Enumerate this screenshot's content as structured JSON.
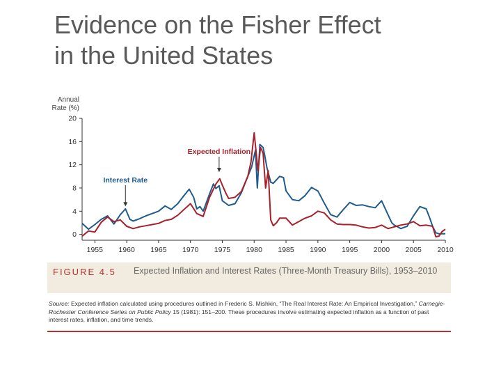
{
  "slide": {
    "title_line1": "Evidence on the Fisher Effect",
    "title_line2": "in the United States"
  },
  "figure": {
    "label": "FIGURE 4.5",
    "caption": "Expected Inflation and Interest Rates (Three-Month Treasury Bills), 1953–2010",
    "source_label": "Source:",
    "source_text_1": "Expected inflation calculated using procedures outlined in Frederic S. Mishkin, “The Real Interest Rate: An Empirical Investigation,”",
    "source_journal": "Carnegie-Rochester Conference Series on Public Policy",
    "source_text_2": "15 (1981): 151–200. These procedures involve estimating expected inflation as a function of past interest rates, inflation, and time trends."
  },
  "colors": {
    "interest_rate": "#1f5c8c",
    "expected_inflation": "#a8202a",
    "accent": "#b5332e"
  },
  "chart_data": {
    "type": "line",
    "ylabel_line1": "Annual",
    "ylabel_line2": "Rate (%)",
    "xlim": [
      1953,
      2010
    ],
    "ylim": [
      -1,
      20
    ],
    "yticks": [
      0,
      4,
      8,
      12,
      16,
      20
    ],
    "xticks": [
      1955,
      1960,
      1965,
      1970,
      1975,
      1980,
      1985,
      1990,
      1995,
      2000,
      2005,
      2010
    ],
    "grid": false,
    "annotations": [
      {
        "text": "Interest Rate",
        "series": "interest_rate",
        "x": 1959.8,
        "y": 4.6
      },
      {
        "text": "Expected Inflation",
        "series": "expected_inflation",
        "x": 1974.5,
        "y": 10.5
      }
    ],
    "series": [
      {
        "key": "interest_rate",
        "x": [
          1953,
          1954,
          1955,
          1956,
          1957,
          1958,
          1959,
          1959.8,
          1960.5,
          1961,
          1962,
          1963,
          1964,
          1965,
          1966,
          1967,
          1968,
          1969,
          1969.8,
          1970.5,
          1971,
          1971.5,
          1972,
          1973,
          1973.6,
          1974,
          1974.5,
          1975,
          1976,
          1977,
          1978,
          1979,
          1979.6,
          1980.2,
          1980.5,
          1980.9,
          1981.4,
          1981.7,
          1982,
          1982.6,
          1983,
          1984,
          1984.6,
          1985,
          1986,
          1987,
          1988,
          1989,
          1990,
          1991,
          1992,
          1993,
          1994,
          1995,
          1996,
          1997,
          1998,
          1999,
          2000,
          2001,
          2001.6,
          2002,
          2003,
          2004,
          2005,
          2006,
          2007,
          2007.5,
          2008,
          2008.5,
          2009,
          2009.5,
          2010
        ],
        "y": [
          1.9,
          0.9,
          1.7,
          2.6,
          3.2,
          1.8,
          3.4,
          4.4,
          2.6,
          2.3,
          2.7,
          3.2,
          3.6,
          4.0,
          4.9,
          4.3,
          5.3,
          6.7,
          7.8,
          6.4,
          4.4,
          4.8,
          4.0,
          7.0,
          8.7,
          7.9,
          8.4,
          5.8,
          5.0,
          5.3,
          7.2,
          10.0,
          11.6,
          14.5,
          8.0,
          15.5,
          15.0,
          13.4,
          11.5,
          9.0,
          8.8,
          10.0,
          9.8,
          7.5,
          6.0,
          5.8,
          6.7,
          8.1,
          7.5,
          5.4,
          3.4,
          3.0,
          4.3,
          5.5,
          5.0,
          5.1,
          4.8,
          4.6,
          5.8,
          3.4,
          2.0,
          1.6,
          1.0,
          1.4,
          3.2,
          4.8,
          4.4,
          3.0,
          1.4,
          0.3,
          0.1,
          0.1,
          0.1
        ]
      },
      {
        "key": "expected_inflation",
        "x": [
          1953,
          1954,
          1955,
          1956,
          1957,
          1958,
          1959,
          1960,
          1961,
          1962,
          1963,
          1964,
          1965,
          1966,
          1967,
          1968,
          1969,
          1970,
          1971,
          1972,
          1973,
          1974,
          1974.6,
          1975,
          1975.6,
          1976,
          1977,
          1978,
          1979,
          1979.5,
          1980,
          1980.6,
          1981,
          1981.4,
          1981.8,
          1982.2,
          1982.6,
          1983,
          1983.5,
          1984,
          1985,
          1986,
          1987,
          1988,
          1989,
          1990,
          1991,
          1992,
          1993,
          1994,
          1995,
          1996,
          1997,
          1998,
          1999,
          2000,
          2001,
          2002,
          2003,
          2004,
          2005,
          2006,
          2007,
          2008,
          2008.5,
          2009,
          2009.5,
          2010
        ],
        "y": [
          -0.3,
          0.6,
          0.4,
          2.1,
          3.0,
          2.2,
          2.5,
          1.4,
          1.0,
          1.3,
          1.5,
          1.7,
          1.9,
          2.4,
          2.6,
          3.3,
          4.3,
          5.3,
          3.6,
          3.1,
          6.4,
          8.7,
          9.6,
          8.5,
          7.0,
          6.2,
          6.4,
          7.4,
          10.0,
          12.5,
          17.5,
          11.0,
          15.0,
          14.0,
          8.0,
          11.0,
          2.5,
          1.5,
          2.0,
          2.8,
          2.8,
          1.6,
          2.2,
          2.8,
          3.2,
          4.0,
          3.7,
          2.5,
          1.8,
          1.7,
          1.7,
          1.6,
          1.3,
          1.1,
          1.2,
          1.6,
          1.0,
          1.3,
          1.6,
          1.8,
          2.2,
          1.5,
          1.6,
          1.4,
          -0.4,
          -0.3,
          0.5,
          0.9
        ]
      }
    ]
  }
}
